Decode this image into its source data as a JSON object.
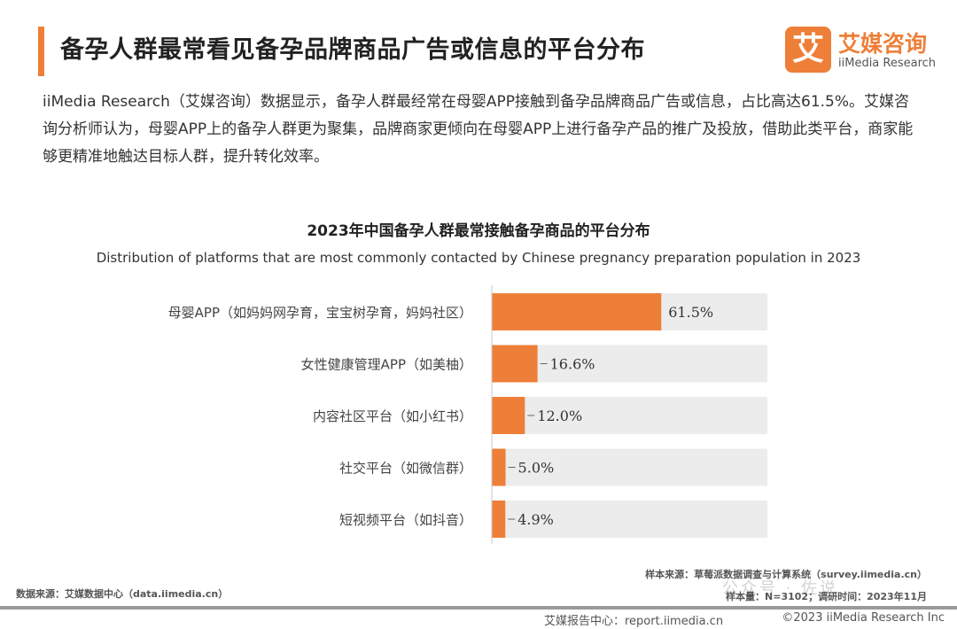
{
  "header": {
    "title": "备孕人群最常看见备孕品牌商品广告或信息的平台分布",
    "logo_mark": "艾",
    "logo_cn": "艾媒咨询",
    "logo_en": "iiMedia Research"
  },
  "intro": "iiMedia Research（艾媒咨询）数据显示，备孕人群最经常在母婴APP接触到备孕品牌商品广告或信息，占比高达61.5%。艾媒咨询分析师认为，母婴APP上的备孕人群更为聚集，品牌商家更倾向在母婴APP上进行备孕产品的推广及投放，借助此类平台，商家能够更精准地触达目标人群，提升转化效率。",
  "chart_data": {
    "type": "bar",
    "orientation": "horizontal",
    "title": "2023年中国备孕人群最常接触备孕商品的平台分布",
    "subtitle": "Distribution of platforms that are most commonly contacted by Chinese pregnancy preparation population in 2023",
    "categories": [
      "母婴APP（如妈妈网孕育，宝宝树孕育，妈妈社区）",
      "女性健康管理APP（如美柚）",
      "内容社区平台（如小红书）",
      "社交平台（如微信群）",
      "短视频平台（如抖音）"
    ],
    "values": [
      61.5,
      16.6,
      12.0,
      5.0,
      4.9
    ],
    "value_labels": [
      "61.5%",
      "16.6%",
      "12.0%",
      "5.0%",
      "4.9%"
    ],
    "xlim": [
      0,
      100
    ],
    "grid": false,
    "colors": {
      "bar": "#ee7f38",
      "track": "#ececec",
      "axis": "#c8c8c8"
    }
  },
  "sources": {
    "data_source": "数据来源：艾媒数据中心（data.iimedia.cn）",
    "sample_source": "样本来源：草莓派数据调查与计算系统（survey.iimedia.cn）",
    "sample_info": "样本量：N=3102；调研时间：2023年11月"
  },
  "footer": {
    "report": "艾媒报告中心：report.iimedia.cn",
    "copyright": "©2023  iiMedia Research Inc"
  },
  "watermark": "公众号 · 佐说"
}
